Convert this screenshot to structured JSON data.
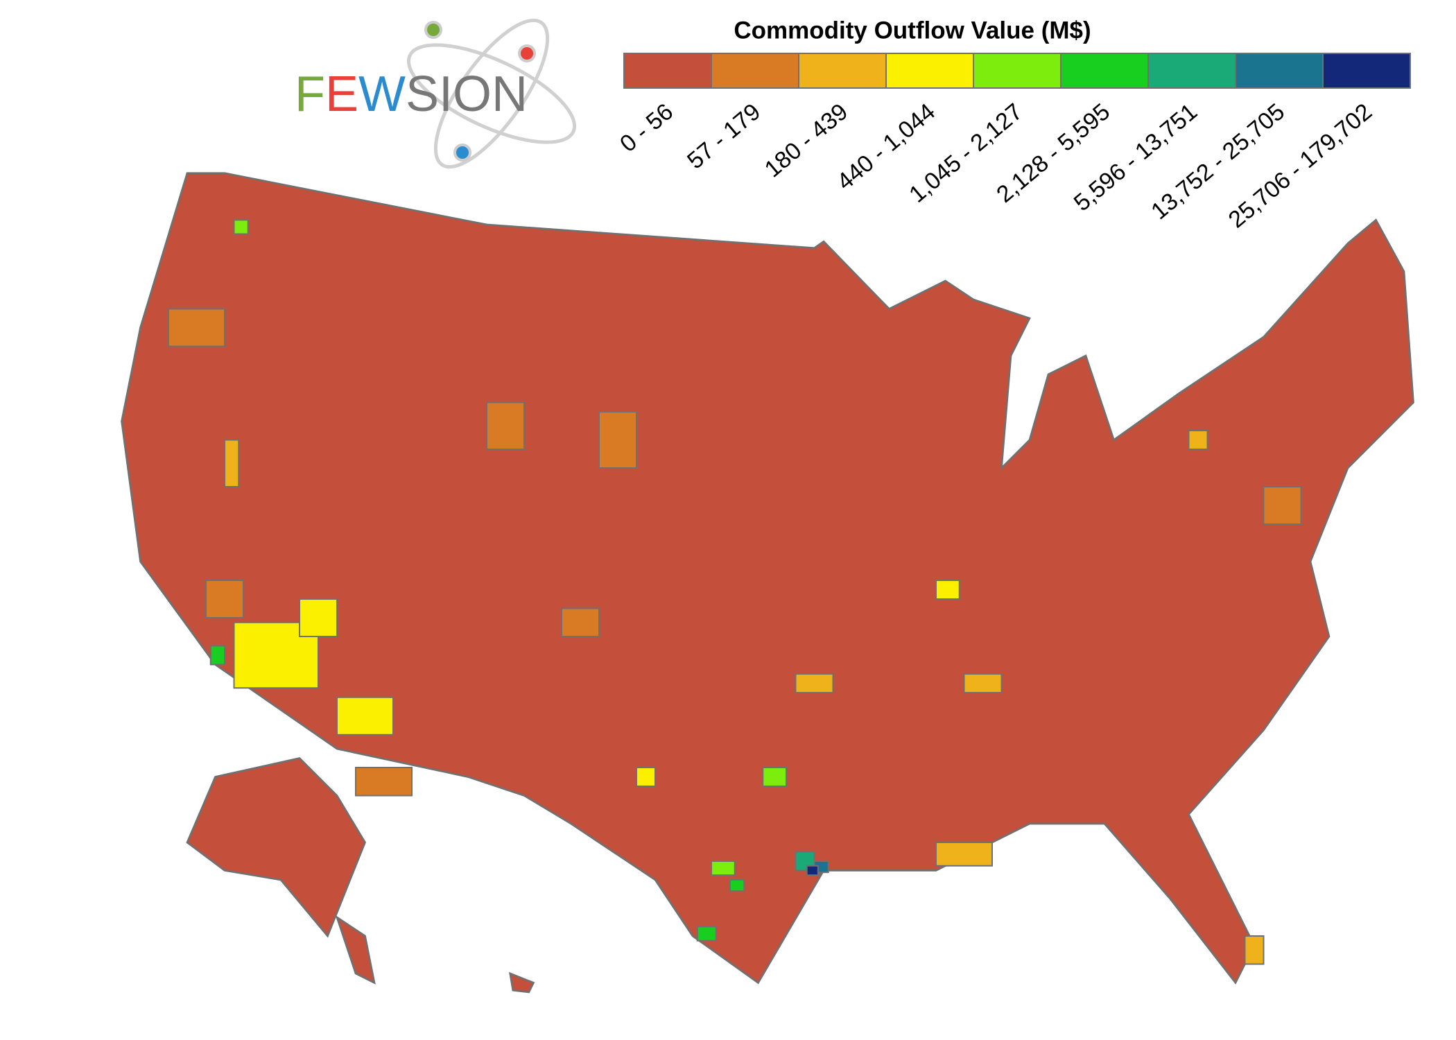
{
  "logo": {
    "parts": [
      {
        "text": "F",
        "color": "#76a83a"
      },
      {
        "text": "E",
        "color": "#e8413a"
      },
      {
        "text": "W",
        "color": "#2a8ccf"
      },
      {
        "text": "SION",
        "color": "#777777"
      }
    ]
  },
  "legend": {
    "title": "Commodity Outflow Value  (M$)",
    "bins": [
      {
        "label": "0 - 56",
        "color": "#c4503b"
      },
      {
        "label": "57 - 179",
        "color": "#d97b24"
      },
      {
        "label": "180 - 439",
        "color": "#f0b21a"
      },
      {
        "label": "440 - 1,044",
        "color": "#fbf000"
      },
      {
        "label": "1,045 - 2,127",
        "color": "#7ced0c"
      },
      {
        "label": "2,128 - 5,595",
        "color": "#18cf20"
      },
      {
        "label": "5,596 - 13,751",
        "color": "#1aaa78"
      },
      {
        "label": "13,752 - 25,705",
        "color": "#1a7490"
      },
      {
        "label": "25,706 - 179,702",
        "color": "#14287a"
      }
    ]
  }
}
